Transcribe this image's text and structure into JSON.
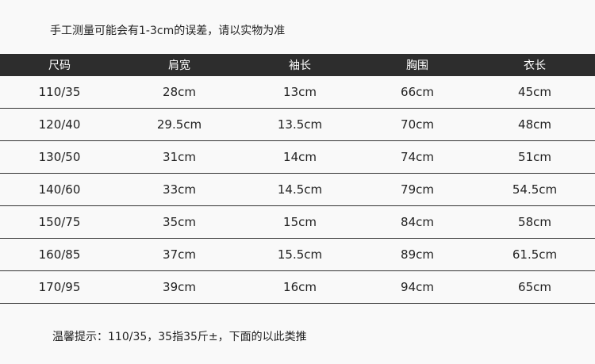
{
  "note_top": "手工测量可能会有1-3cm的误差，请以实物为准",
  "headers": [
    "尺码",
    "肩宽",
    "袖长",
    "胸围",
    "衣长"
  ],
  "rows": [
    [
      "110/35",
      "28cm",
      "13cm",
      "66cm",
      "45cm"
    ],
    [
      "120/40",
      "29.5cm",
      "13.5cm",
      "70cm",
      "48cm"
    ],
    [
      "130/50",
      "31cm",
      "14cm",
      "74cm",
      "51cm"
    ],
    [
      "140/60",
      "33cm",
      "14.5cm",
      "79cm",
      "54.5cm"
    ],
    [
      "150/75",
      "35cm",
      "15cm",
      "84cm",
      "58cm"
    ],
    [
      "160/85",
      "37cm",
      "15.5cm",
      "89cm",
      "61.5cm"
    ],
    [
      "170/95",
      "39cm",
      "16cm",
      "94cm",
      "65cm"
    ]
  ],
  "note_bottom": "温馨提示：110/35，35指35斤±，下面的以此类推"
}
